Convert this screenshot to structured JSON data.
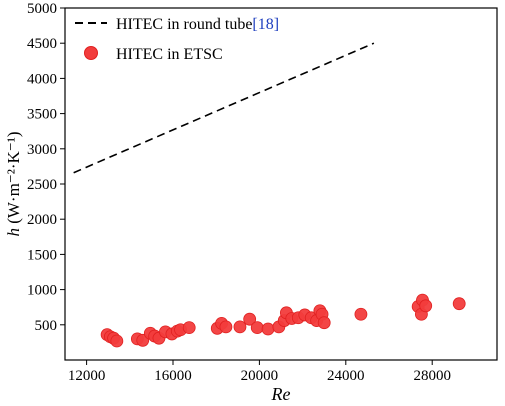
{
  "chart_data": {
    "type": "scatter",
    "xlabel": "Re",
    "ylabel_main": "h",
    "ylabel_unit": "(W·m⁻²·K⁻¹)",
    "xlim": [
      11000,
      31000
    ],
    "ylim": [
      0,
      5000
    ],
    "xticks": [
      12000,
      16000,
      20000,
      24000,
      28000
    ],
    "yticks": [
      500,
      1000,
      1500,
      2000,
      2500,
      3000,
      3500,
      4000,
      4500,
      5000
    ],
    "grid": false,
    "legend_position": "top-left",
    "series": [
      {
        "name": "HITEC in round tube",
        "ref": "[18]",
        "style": "dashed-line",
        "color": "#000000",
        "points": [
          [
            11400,
            2660
          ],
          [
            25300,
            4500
          ]
        ]
      },
      {
        "name": "HITEC in ETSC",
        "style": "markers",
        "color": "#f23c3c",
        "points": [
          [
            12950,
            360
          ],
          [
            13100,
            330
          ],
          [
            13250,
            310
          ],
          [
            13400,
            270
          ],
          [
            14350,
            300
          ],
          [
            14600,
            280
          ],
          [
            14950,
            380
          ],
          [
            15150,
            340
          ],
          [
            15350,
            310
          ],
          [
            15650,
            400
          ],
          [
            15950,
            370
          ],
          [
            16200,
            410
          ],
          [
            16350,
            430
          ],
          [
            16750,
            460
          ],
          [
            18050,
            450
          ],
          [
            18250,
            520
          ],
          [
            18450,
            470
          ],
          [
            19100,
            470
          ],
          [
            19550,
            580
          ],
          [
            19900,
            460
          ],
          [
            20400,
            440
          ],
          [
            20900,
            470
          ],
          [
            21150,
            560
          ],
          [
            21250,
            670
          ],
          [
            21500,
            590
          ],
          [
            21800,
            600
          ],
          [
            22100,
            640
          ],
          [
            22400,
            600
          ],
          [
            22650,
            560
          ],
          [
            22800,
            700
          ],
          [
            22900,
            650
          ],
          [
            23000,
            530
          ],
          [
            24700,
            650
          ],
          [
            27350,
            760
          ],
          [
            27500,
            650
          ],
          [
            27550,
            850
          ],
          [
            27700,
            770
          ],
          [
            29250,
            800
          ]
        ]
      }
    ]
  }
}
